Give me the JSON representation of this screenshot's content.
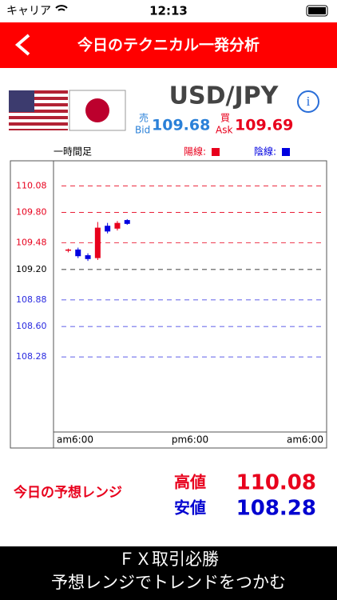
{
  "status_bar": {
    "carrier": "キャリア",
    "time": "12:13"
  },
  "header": {
    "title": "今日のテクニカル一発分析"
  },
  "pair": {
    "name": "USD/JPY",
    "bid_label": "売",
    "bid_en": "Bid",
    "bid": 109.68,
    "ask_label": "買",
    "ask_en": "Ask",
    "ask": 109.69
  },
  "chart_data": {
    "type": "candlestick",
    "timeframe": "一時間足",
    "legend": [
      {
        "name": "陽線:",
        "color": "#e8001c"
      },
      {
        "name": "陰線:",
        "color": "#0000e0"
      }
    ],
    "x_labels": [
      "am6:00",
      "pm6:00",
      "am6:00"
    ],
    "open": [
      109.4,
      109.41,
      109.35,
      109.32,
      109.66,
      109.63,
      109.72
    ],
    "high": [
      109.42,
      109.43,
      109.37,
      109.7,
      109.69,
      109.71,
      109.73
    ],
    "low": [
      109.38,
      109.32,
      109.29,
      109.3,
      109.58,
      109.61,
      109.67
    ],
    "close": [
      109.41,
      109.34,
      109.31,
      109.64,
      109.6,
      109.69,
      109.68
    ],
    "ylim": [
      107.49,
      110.31
    ],
    "yticks": [
      110.08,
      {
        "value": 109.8,
        "label": "109.80"
      },
      109.48,
      {
        "value": 109.2,
        "label": "109.20"
      },
      108.88,
      {
        "value": 108.6,
        "label": "108.60"
      },
      108.28
    ],
    "ytick_colors": [
      "#e8001c",
      "#e8001c",
      "#e8001c",
      "#000000",
      "#2a2ae0",
      "#2a2ae0",
      "#2a2ae0"
    ]
  },
  "range": {
    "title": "今日の予想レンジ",
    "high_label": "高値",
    "high": 110.08,
    "low_label": "安値",
    "low": 108.28
  },
  "footer": {
    "line1": "ＦＸ取引必勝",
    "line2": "予想レンジでトレンドをつかむ"
  }
}
